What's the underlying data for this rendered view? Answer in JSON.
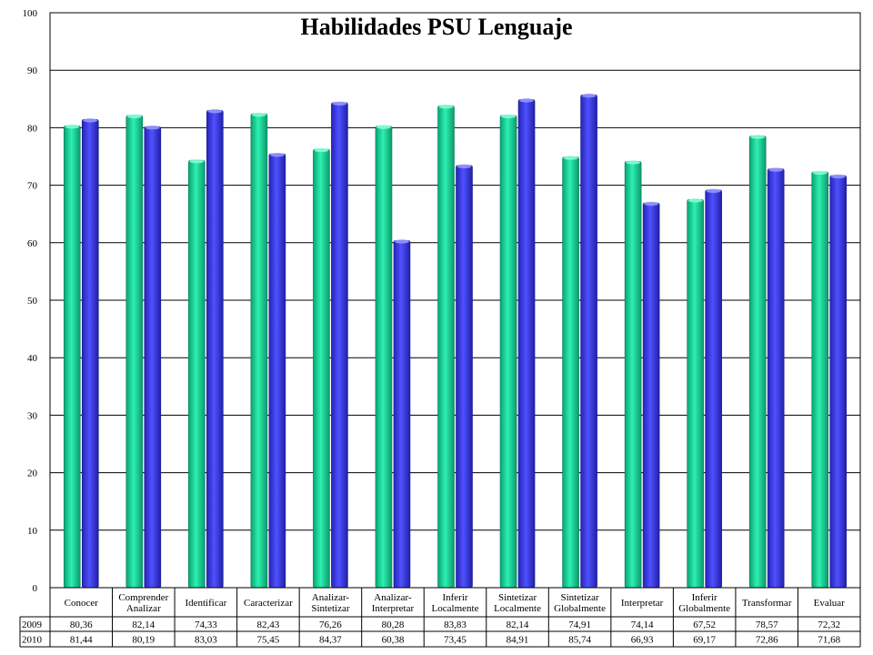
{
  "chart_data": {
    "type": "bar",
    "title": "Habilidades PSU Lenguaje",
    "ylim": [
      0,
      100
    ],
    "yticks": [
      0,
      10,
      20,
      30,
      40,
      50,
      60,
      70,
      80,
      90,
      100
    ],
    "grid": true,
    "legend": "data-table",
    "categories": [
      "Conocer",
      "Comprender Analizar",
      "Identificar",
      "Caracterizar",
      "Analizar-Sintetizar",
      "Analizar-Interpretar",
      "Inferir Localmente",
      "Sintetizar Localmente",
      "Sintetizar Globalmente",
      "Interpretar",
      "Inferir Globalmente",
      "Transformar",
      "Evaluar"
    ],
    "category_lines": [
      [
        "Conocer"
      ],
      [
        "Comprender",
        "Analizar"
      ],
      [
        "Identificar"
      ],
      [
        "Caracterizar"
      ],
      [
        "Analizar-",
        "Sintetizar"
      ],
      [
        "Analizar-",
        "Interpretar"
      ],
      [
        "Inferir",
        "Localmente"
      ],
      [
        "Sintetizar",
        "Localmente"
      ],
      [
        "Sintetizar",
        "Globalmente"
      ],
      [
        "Interpretar"
      ],
      [
        "Inferir",
        "Globalmente"
      ],
      [
        "Transformar"
      ],
      [
        "Evaluar"
      ]
    ],
    "series": [
      {
        "name": "2009",
        "color": "#10c890",
        "values": [
          80.36,
          82.14,
          74.33,
          82.43,
          76.26,
          80.28,
          83.83,
          82.14,
          74.91,
          74.14,
          67.52,
          78.57,
          72.32
        ],
        "labels": [
          "80,36",
          "82,14",
          "74,33",
          "82,43",
          "76,26",
          "80,28",
          "83,83",
          "82,14",
          "74,91",
          "74,14",
          "67,52",
          "78,57",
          "72,32"
        ]
      },
      {
        "name": "2010",
        "color": "#3a3ae0",
        "values": [
          81.44,
          80.19,
          83.03,
          75.45,
          84.37,
          60.38,
          73.45,
          84.91,
          85.74,
          66.93,
          69.17,
          72.86,
          71.68
        ],
        "labels": [
          "81,44",
          "80,19",
          "83,03",
          "75,45",
          "84,37",
          "60,38",
          "73,45",
          "84,91",
          "85,74",
          "66,93",
          "69,17",
          "72,86",
          "71,68"
        ]
      }
    ]
  }
}
